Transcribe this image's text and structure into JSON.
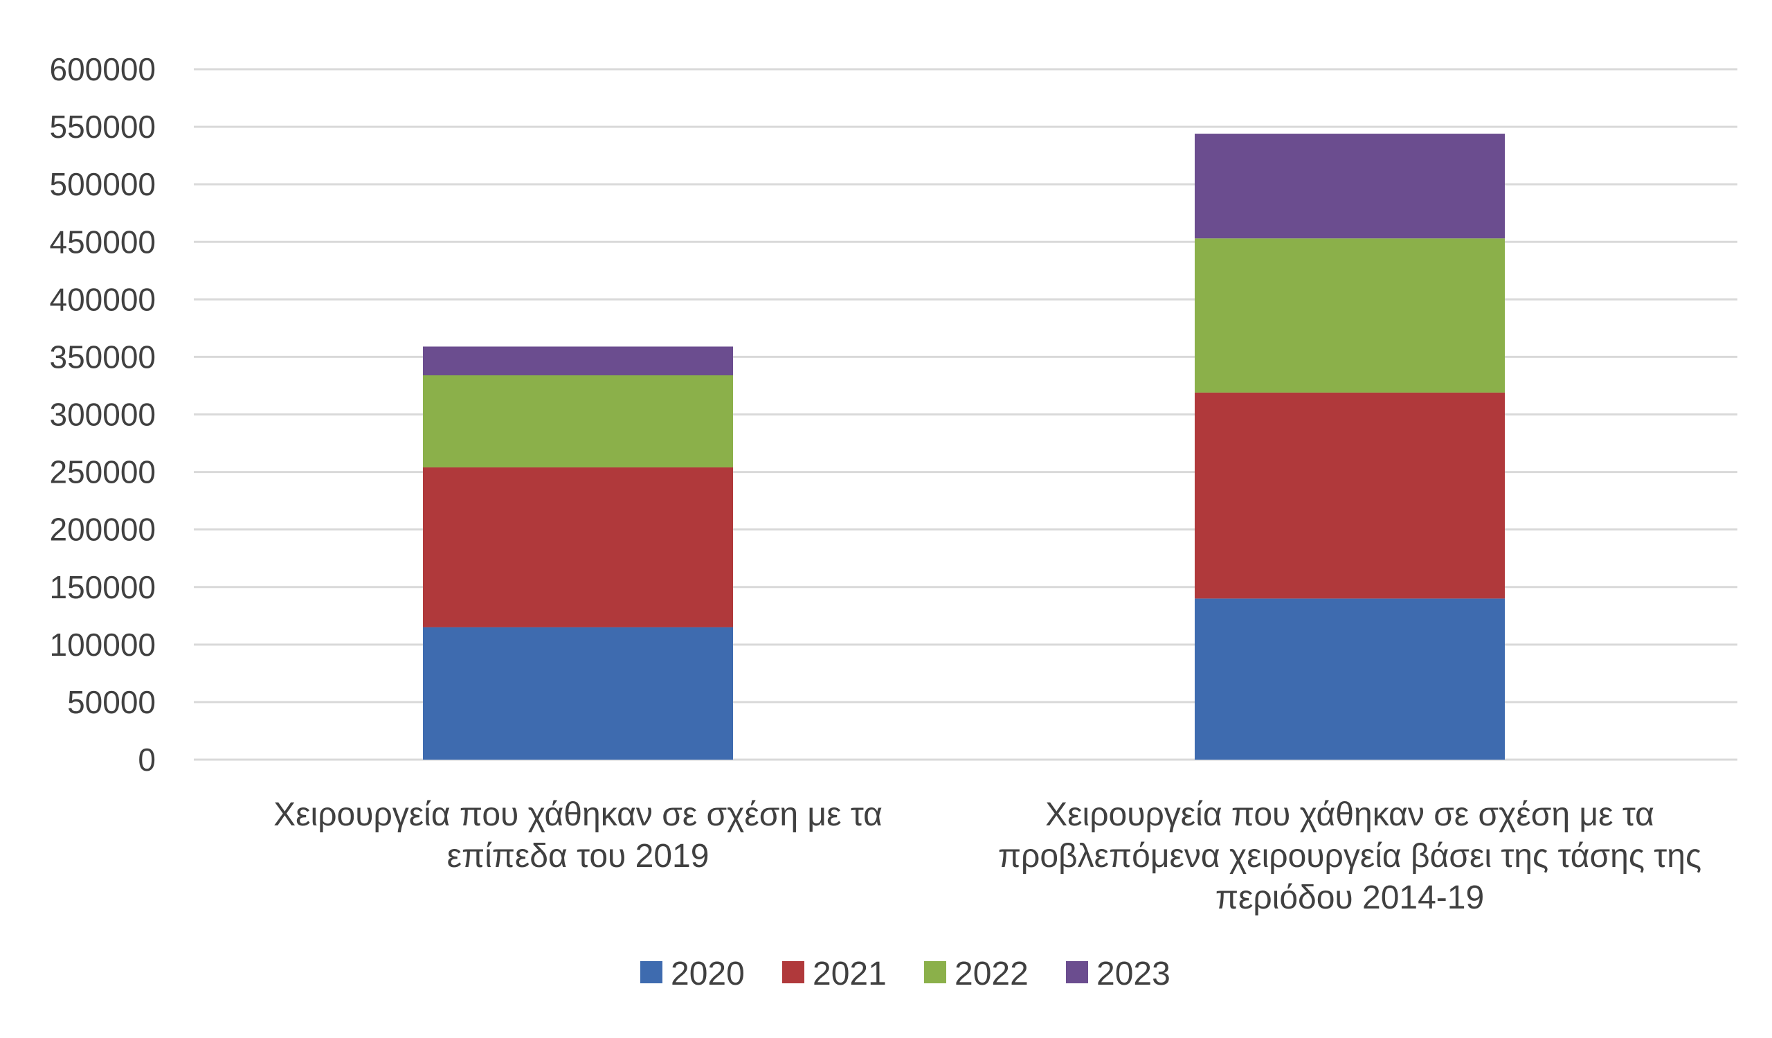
{
  "chart_data": {
    "type": "bar",
    "stacked": true,
    "title": "",
    "xlabel": "",
    "ylabel": "",
    "ylim": [
      0,
      600000
    ],
    "yticks": [
      0,
      50000,
      100000,
      150000,
      200000,
      250000,
      300000,
      350000,
      400000,
      450000,
      500000,
      550000,
      600000
    ],
    "grid": true,
    "legend": "bottom",
    "categories": [
      [
        "Χειρουργεία που χάθηκαν σε σχέση με τα",
        "επίπεδα του 2019"
      ],
      [
        "Χειρουργεία που χάθηκαν σε σχέση με τα",
        "προβλεπόμενα χειρουργεία βάσει της τάσης της",
        "περιόδου 2014-19"
      ]
    ],
    "series": [
      {
        "name": "2020",
        "color": "#3e6baf",
        "values": [
          115000,
          140000
        ]
      },
      {
        "name": "2021",
        "color": "#b0393b",
        "values": [
          139000,
          179000
        ]
      },
      {
        "name": "2022",
        "color": "#8bb04a",
        "values": [
          80000,
          134000
        ]
      },
      {
        "name": "2023",
        "color": "#6b4d8f",
        "values": [
          25000,
          91000
        ]
      }
    ]
  }
}
